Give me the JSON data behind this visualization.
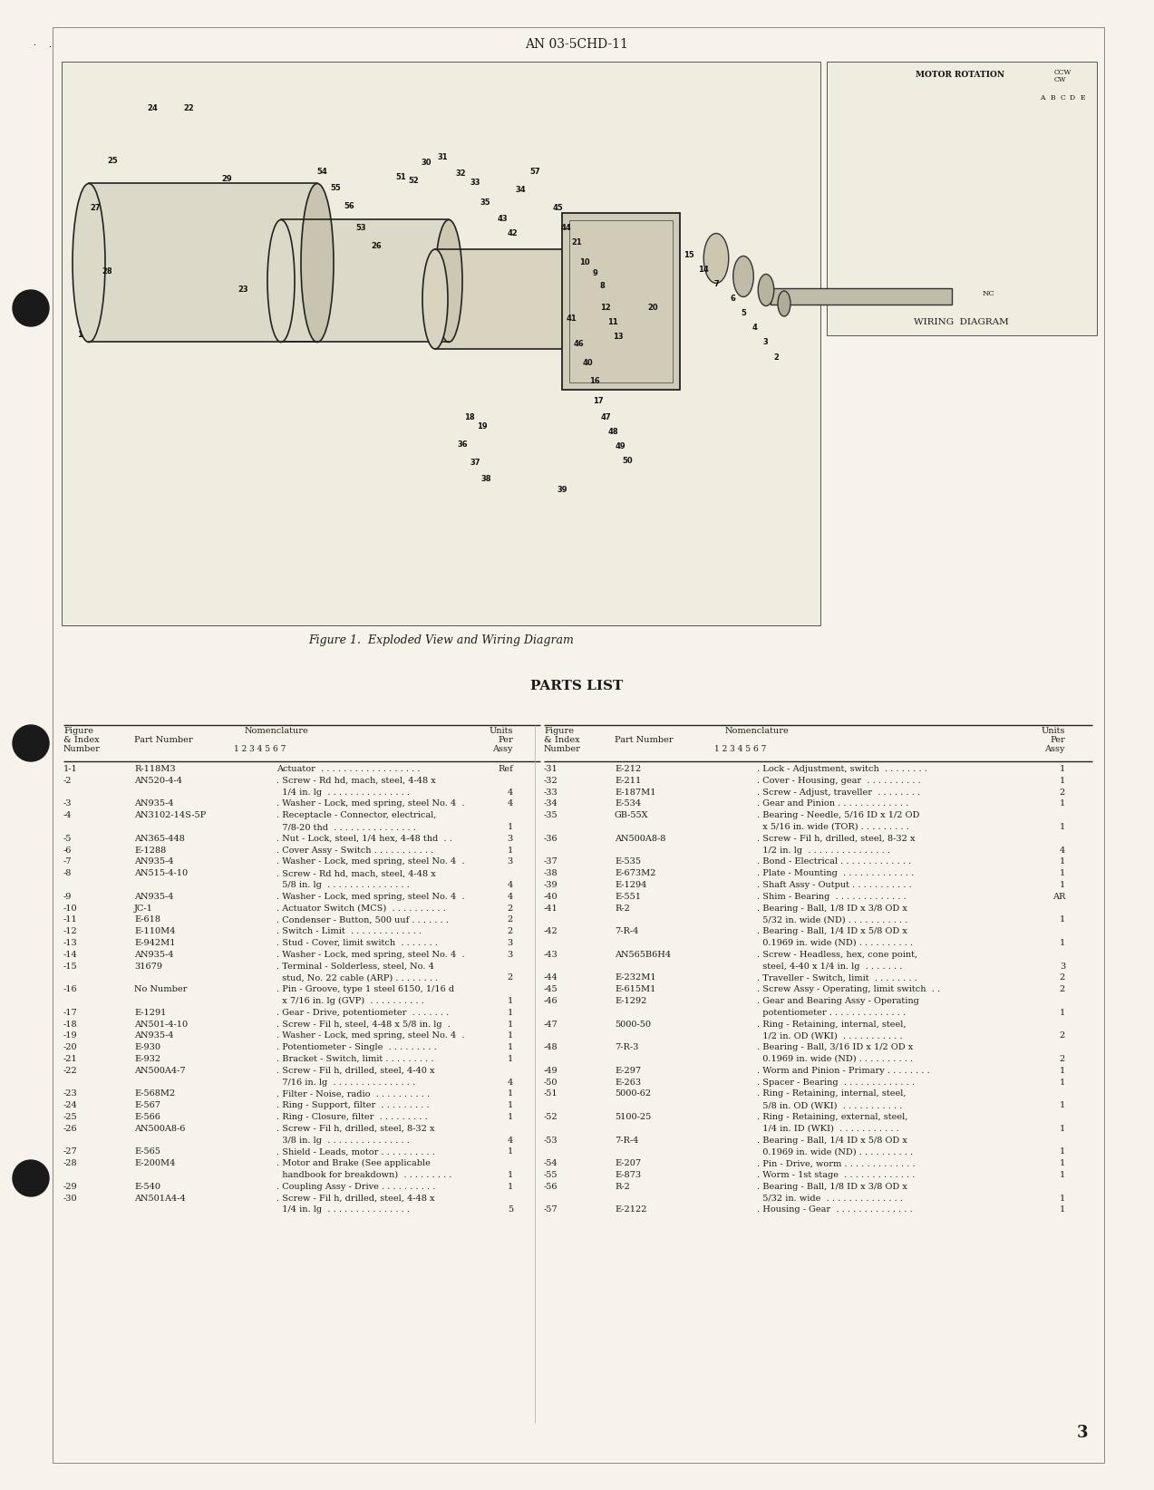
{
  "page_header": "AN 03-5CHD-11",
  "figure_caption": "Figure 1.  Exploded View and Wiring Diagram",
  "parts_list_title": "PARTS LIST",
  "page_number": "3",
  "bg_color": "#f7f3ea",
  "text_color": "#1c1c1c",
  "left_rows": [
    [
      "1-1",
      "R-118M3",
      "Actuator  . . . . . . . . . . . . . . . . . .",
      "Ref"
    ],
    [
      "-2",
      "AN520-4-4",
      ". Screw - Rd hd, mach, steel, 4-48 x",
      ""
    ],
    [
      "",
      "",
      "  1/4 in. lg  . . . . . . . . . . . . . . .",
      "4"
    ],
    [
      "-3",
      "AN935-4",
      ". Washer - Lock, med spring, steel No. 4  .",
      "4"
    ],
    [
      "-4",
      "AN3102-14S-5P",
      ". Receptacle - Connector, electrical,",
      ""
    ],
    [
      "",
      "",
      "  7/8-20 thd  . . . . . . . . . . . . . . .",
      "1"
    ],
    [
      "-5",
      "AN365-448",
      ". Nut - Lock, steel, 1/4 hex, 4-48 thd  . .",
      "3"
    ],
    [
      "-6",
      "E-1288",
      ". Cover Assy - Switch . . . . . . . . . . .",
      "1"
    ],
    [
      "-7",
      "AN935-4",
      ". Washer - Lock, med spring, steel No. 4  .",
      "3"
    ],
    [
      "-8",
      "AN515-4-10",
      ". Screw - Rd hd, mach, steel, 4-48 x",
      ""
    ],
    [
      "",
      "",
      "  5/8 in. lg  . . . . . . . . . . . . . . .",
      "4"
    ],
    [
      "-9",
      "AN935-4",
      ". Washer - Lock, med spring, steel No. 4  .",
      "4"
    ],
    [
      "-10",
      "JC-1",
      ". Actuator Switch (MCS)  . . . . . . . . . .",
      "2"
    ],
    [
      "-11",
      "E-618",
      ". Condenser - Button, 500 uuf . . . . . . .",
      "2"
    ],
    [
      "-12",
      "E-110M4",
      ". Switch - Limit  . . . . . . . . . . . . .",
      "2"
    ],
    [
      "-13",
      "E-942M1",
      ". Stud - Cover, limit switch  . . . . . . .",
      "3"
    ],
    [
      "-14",
      "AN935-4",
      ". Washer - Lock, med spring, steel No. 4  .",
      "3"
    ],
    [
      "-15",
      "31679",
      ". Terminal - Solderless, steel, No. 4",
      ""
    ],
    [
      "",
      "",
      "  stud, No. 22 cable (ARP) . . . . . . . .",
      "2"
    ],
    [
      "-16",
      "No Number",
      ". Pin - Groove, type 1 steel 6150, 1/16 d",
      ""
    ],
    [
      "",
      "",
      "  x 7/16 in. lg (GVP)  . . . . . . . . . .",
      "1"
    ],
    [
      "-17",
      "E-1291",
      ". Gear - Drive, potentiometer  . . . . . . .",
      "1"
    ],
    [
      "-18",
      "AN501-4-10",
      ". Screw - Fil h, steel, 4-48 x 5/8 in. lg  .",
      "1"
    ],
    [
      "-19",
      "AN935-4",
      ". Washer - Lock, med spring, steel No. 4  .",
      "1"
    ],
    [
      "-20",
      "E-930",
      ". Potentiometer - Single  . . . . . . . . .",
      "1"
    ],
    [
      "-21",
      "E-932",
      ". Bracket - Switch, limit . . . . . . . . .",
      "1"
    ],
    [
      "-22",
      "AN500A4-7",
      ". Screw - Fil h, drilled, steel, 4-40 x",
      ""
    ],
    [
      "",
      "",
      "  7/16 in. lg  . . . . . . . . . . . . . . .",
      "4"
    ],
    [
      "-23",
      "E-568M2",
      ". Filter - Noise, radio  . . . . . . . . . .",
      "1"
    ],
    [
      "-24",
      "E-567",
      ". Ring - Support, filter  . . . . . . . . .",
      "1"
    ],
    [
      "-25",
      "E-566",
      ". Ring - Closure, filter  . . . . . . . . .",
      "1"
    ],
    [
      "-26",
      "AN500A8-6",
      ". Screw - Fil h, drilled, steel, 8-32 x",
      ""
    ],
    [
      "",
      "",
      "  3/8 in. lg  . . . . . . . . . . . . . . .",
      "4"
    ],
    [
      "-27",
      "E-565",
      ". Shield - Leads, motor . . . . . . . . . .",
      "1"
    ],
    [
      "-28",
      "E-200M4",
      ". Motor and Brake (See applicable",
      ""
    ],
    [
      "",
      "",
      "  handbook for breakdown)  . . . . . . . . .",
      "1"
    ],
    [
      "-29",
      "E-540",
      ". Coupling Assy - Drive . . . . . . . . . .",
      "1"
    ],
    [
      "-30",
      "AN501A4-4",
      ". Screw - Fil h, drilled, steel, 4-48 x",
      ""
    ],
    [
      "",
      "",
      "  1/4 in. lg  . . . . . . . . . . . . . . .",
      "5"
    ]
  ],
  "right_rows": [
    [
      "-31",
      "E-212",
      ". Lock - Adjustment, switch  . . . . . . . .",
      "1"
    ],
    [
      "-32",
      "E-211",
      ". Cover - Housing, gear  . . . . . . . . . .",
      "1"
    ],
    [
      "-33",
      "E-187M1",
      ". Screw - Adjust, traveller  . . . . . . . .",
      "2"
    ],
    [
      "-34",
      "E-534",
      ". Gear and Pinion . . . . . . . . . . . . .",
      "1"
    ],
    [
      "-35",
      "GB-55X",
      ". Bearing - Needle, 5/16 ID x 1/2 OD",
      ""
    ],
    [
      "",
      "",
      "  x 5/16 in. wide (TOR) . . . . . . . . .",
      "1"
    ],
    [
      "-36",
      "AN500A8-8",
      ". Screw - Fil h, drilled, steel, 8-32 x",
      ""
    ],
    [
      "",
      "",
      "  1/2 in. lg  . . . . . . . . . . . . . . .",
      "4"
    ],
    [
      "-37",
      "E-535",
      ". Bond - Electrical . . . . . . . . . . . . .",
      "1"
    ],
    [
      "-38",
      "E-673M2",
      ". Plate - Mounting  . . . . . . . . . . . . .",
      "1"
    ],
    [
      "-39",
      "E-1294",
      ". Shaft Assy - Output . . . . . . . . . . .",
      "1"
    ],
    [
      "-40",
      "E-551",
      ". Shim - Bearing  . . . . . . . . . . . . .",
      "AR"
    ],
    [
      "-41",
      "R-2",
      ". Bearing - Ball, 1/8 ID x 3/8 OD x",
      ""
    ],
    [
      "",
      "",
      "  5/32 in. wide (ND) . . . . . . . . . . .",
      "1"
    ],
    [
      "-42",
      "7-R-4",
      ". Bearing - Ball, 1/4 ID x 5/8 OD x",
      ""
    ],
    [
      "",
      "",
      "  0.1969 in. wide (ND) . . . . . . . . . .",
      "1"
    ],
    [
      "-43",
      "AN565B6H4",
      ". Screw - Headless, hex, cone point,",
      ""
    ],
    [
      "",
      "",
      "  steel, 4-40 x 1/4 in. lg  . . . . . . .",
      "3"
    ],
    [
      "-44",
      "E-232M1",
      ". Traveller - Switch, limit  . . . . . . . .",
      "2"
    ],
    [
      "-45",
      "E-615M1",
      ". Screw Assy - Operating, limit switch  . .",
      "2"
    ],
    [
      "-46",
      "E-1292",
      ". Gear and Bearing Assy - Operating",
      ""
    ],
    [
      "",
      "",
      "  potentiometer . . . . . . . . . . . . . .",
      "1"
    ],
    [
      "-47",
      "5000-50",
      ". Ring - Retaining, internal, steel,",
      ""
    ],
    [
      "",
      "",
      "  1/2 in. OD (WKI)  . . . . . . . . . . .",
      "2"
    ],
    [
      "-48",
      "7-R-3",
      ". Bearing - Ball, 3/16 ID x 1/2 OD x",
      ""
    ],
    [
      "",
      "",
      "  0.1969 in. wide (ND) . . . . . . . . . .",
      "2"
    ],
    [
      "-49",
      "E-297",
      ". Worm and Pinion - Primary . . . . . . . .",
      "1"
    ],
    [
      "-50",
      "E-263",
      ". Spacer - Bearing  . . . . . . . . . . . . .",
      "1"
    ],
    [
      "-51",
      "5000-62",
      ". Ring - Retaining, internal, steel,",
      ""
    ],
    [
      "",
      "",
      "  5/8 in. OD (WKI)  . . . . . . . . . . .",
      "1"
    ],
    [
      "-52",
      "5100-25",
      ". Ring - Retaining, external, steel,",
      ""
    ],
    [
      "",
      "",
      "  1/4 in. ID (WKI)  . . . . . . . . . . .",
      "1"
    ],
    [
      "-53",
      "7-R-4",
      ". Bearing - Ball, 1/4 ID x 5/8 OD x",
      ""
    ],
    [
      "",
      "",
      "  0.1969 in. wide (ND) . . . . . . . . . .",
      "1"
    ],
    [
      "-54",
      "E-207",
      ". Pin - Drive, worm . . . . . . . . . . . . .",
      "1"
    ],
    [
      "-55",
      "E-873",
      ". Worm - 1st stage  . . . . . . . . . . . . .",
      "1"
    ],
    [
      "-56",
      "R-2",
      ". Bearing - Ball, 1/8 ID x 3/8 OD x",
      ""
    ],
    [
      "",
      "",
      "  5/32 in. wide  . . . . . . . . . . . . . .",
      "1"
    ],
    [
      "-57",
      "E-2122",
      ". Housing - Gear  . . . . . . . . . . . . . .",
      "1"
    ]
  ]
}
